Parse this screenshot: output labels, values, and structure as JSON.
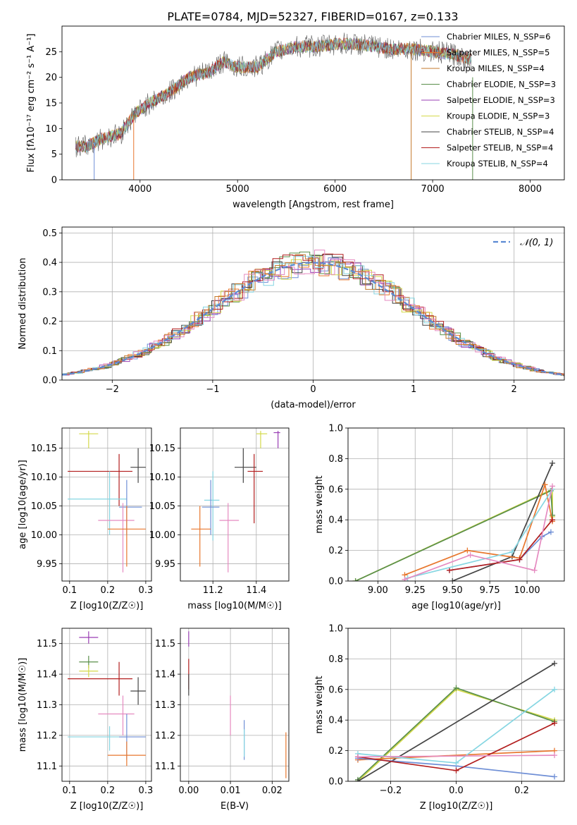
{
  "figure": {
    "title": "PLATE=0784, MJD=52327, FIBERID=0167, z=0.133"
  },
  "chart_data": [
    {
      "id": "spectrum",
      "type": "line",
      "title": "PLATE=0784, MJD=52327, FIBERID=0167, z=0.133",
      "xlabel": "wavelength [Angstrom, rest frame]",
      "ylabel": "Flux [fλ10⁻¹⁷ erg cm⁻² s⁻¹ A⁻¹]",
      "xlim": [
        3200,
        8350
      ],
      "ylim": [
        0,
        30
      ],
      "xticks": [
        4000,
        5000,
        6000,
        7000,
        8000
      ],
      "yticks": [
        0,
        5,
        10,
        15,
        20,
        25
      ],
      "grid": false,
      "legend_position": "right",
      "continuum": {
        "x": [
          3340,
          3450,
          3600,
          3800,
          3950,
          4100,
          4300,
          4500,
          4700,
          4850,
          5000,
          5200,
          5400,
          5600,
          5800,
          6000,
          6200,
          6400,
          6600,
          6800,
          7000,
          7200,
          7400
        ],
        "y": [
          6.5,
          6.5,
          8,
          9,
          13,
          15,
          17,
          20,
          21,
          23,
          22,
          22,
          25,
          26,
          26,
          26.5,
          26.5,
          26,
          25.5,
          25.5,
          25,
          24.5,
          23.5
        ]
      },
      "spikes": [
        {
          "x": 3530,
          "y": 0
        },
        {
          "x": 3935,
          "y": 0
        },
        {
          "x": 6780,
          "y": 0
        },
        {
          "x": 7410,
          "y": 0
        }
      ],
      "series": [
        {
          "name": "Chabrier MILES, N_SSP=6",
          "color": "#6f8fd6"
        },
        {
          "name": "Salpeter MILES, N_SSP=5",
          "color": "#e8772e"
        },
        {
          "name": "Kroupa MILES, N_SSP=4",
          "color": "#c47a2c"
        },
        {
          "name": "Chabrier ELODIE, N_SSP=3",
          "color": "#5a8f4a"
        },
        {
          "name": "Salpeter ELODIE, N_SSP=3",
          "color": "#9a3fb4"
        },
        {
          "name": "Kroupa ELODIE, N_SSP=3",
          "color": "#d4d94a"
        },
        {
          "name": "Chabrier STELIB, N_SSP=4",
          "color": "#444444"
        },
        {
          "name": "Salpeter STELIB, N_SSP=4",
          "color": "#b21e1e"
        },
        {
          "name": "Kroupa STELIB, N_SSP=4",
          "color": "#86d6e2"
        }
      ]
    },
    {
      "id": "residuals",
      "type": "line",
      "xlabel": "(data-model)/error",
      "ylabel": "Normed distribution",
      "xlim": [
        -2.5,
        2.5
      ],
      "ylim": [
        0,
        0.52
      ],
      "xticks": [
        -2,
        -1,
        0,
        1,
        2
      ],
      "yticks": [
        0.0,
        0.1,
        0.2,
        0.3,
        0.4,
        0.5
      ],
      "grid": true,
      "legend_position": "top-right",
      "legend": "𝒩(0, 1)",
      "normal_color": "#5b8ad3",
      "histogram_colors": [
        "#6f8fd6",
        "#e8772e",
        "#5a8f4a",
        "#9a3fb4",
        "#d4d94a",
        "#444444",
        "#b21e1e",
        "#86d6e2",
        "#e58ac0",
        "#c47a2c"
      ]
    },
    {
      "id": "age-vs-Z",
      "type": "scatter",
      "xlabel": "Z [log10(Z/Z☉)]",
      "ylabel": "age  [log10(age/yr)]",
      "xlim": [
        0.08,
        0.315
      ],
      "ylim": [
        9.92,
        10.185
      ],
      "xticks": [
        0.1,
        0.2,
        0.3
      ],
      "yticks": [
        9.95,
        10.0,
        10.05,
        10.1,
        10.15
      ],
      "grid": true,
      "errorbars": [
        {
          "x": 0.15,
          "y": 10.175,
          "xerr": [
            0.125,
            0.175
          ],
          "yerr": [
            10.15,
            10.18
          ],
          "color": "#d4d94a"
        },
        {
          "x": 0.28,
          "y": 10.117,
          "xerr": [
            0.26,
            0.3
          ],
          "yerr": [
            10.09,
            10.15
          ],
          "color": "#444444"
        },
        {
          "x": 0.23,
          "y": 10.11,
          "xerr": [
            0.095,
            0.265
          ],
          "yerr": [
            10.05,
            10.14
          ],
          "color": "#b21e1e"
        },
        {
          "x": 0.205,
          "y": 10.062,
          "xerr": [
            0.095,
            0.25
          ],
          "yerr": [
            10.0,
            10.11
          ],
          "color": "#86d6e2"
        },
        {
          "x": 0.25,
          "y": 10.048,
          "xerr": [
            0.23,
            0.29
          ],
          "yerr": [
            10.0,
            10.095
          ],
          "color": "#6f8fd6"
        },
        {
          "x": 0.24,
          "y": 10.025,
          "xerr": [
            0.175,
            0.27
          ],
          "yerr": [
            9.935,
            10.055
          ],
          "color": "#e58ac0"
        },
        {
          "x": 0.25,
          "y": 10.01,
          "xerr": [
            0.2,
            0.3
          ],
          "yerr": [
            9.945,
            10.05
          ],
          "color": "#e8772e"
        }
      ]
    },
    {
      "id": "age-vs-mass",
      "type": "scatter",
      "xlabel": "mass [log10(M/M☉)]",
      "ylabel": "",
      "xlim": [
        11.05,
        11.55
      ],
      "ylim": [
        9.92,
        10.185
      ],
      "xticks": [
        11.2,
        11.4
      ],
      "yticks": [
        9.95,
        10.0,
        10.05,
        10.1,
        10.15
      ],
      "grid": true,
      "errorbars": [
        {
          "x": 11.42,
          "y": 10.175,
          "xerr": [
            11.4,
            11.45
          ],
          "yerr": [
            10.15,
            10.18
          ],
          "color": "#d4d94a"
        },
        {
          "x": 11.5,
          "y": 10.177,
          "xerr": [
            11.48,
            11.51
          ],
          "yerr": [
            10.15,
            10.18
          ],
          "color": "#9a3fb4"
        },
        {
          "x": 11.34,
          "y": 10.117,
          "xerr": [
            11.3,
            11.4
          ],
          "yerr": [
            10.09,
            10.15
          ],
          "color": "#444444"
        },
        {
          "x": 11.39,
          "y": 10.11,
          "xerr": [
            11.36,
            11.43
          ],
          "yerr": [
            10.02,
            10.14
          ],
          "color": "#b21e1e"
        },
        {
          "x": 11.2,
          "y": 10.06,
          "xerr": [
            11.16,
            11.23
          ],
          "yerr": [
            9.99,
            10.11
          ],
          "color": "#86d6e2"
        },
        {
          "x": 11.19,
          "y": 10.048,
          "xerr": [
            11.15,
            11.23
          ],
          "yerr": [
            10.0,
            10.095
          ],
          "color": "#6f8fd6"
        },
        {
          "x": 11.27,
          "y": 10.025,
          "xerr": [
            11.23,
            11.32
          ],
          "yerr": [
            9.935,
            10.055
          ],
          "color": "#e58ac0"
        },
        {
          "x": 11.14,
          "y": 10.01,
          "xerr": [
            11.1,
            11.19
          ],
          "yerr": [
            9.945,
            10.05
          ],
          "color": "#e8772e"
        }
      ]
    },
    {
      "id": "massweight-vs-age",
      "type": "line",
      "xlabel": "age  [log10(age/yr)]",
      "ylabel": "mass weight",
      "xlim": [
        8.8,
        10.25
      ],
      "ylim": [
        0,
        1.0
      ],
      "xticks": [
        9.0,
        9.25,
        9.5,
        9.75,
        10.0
      ],
      "yticks": [
        0.0,
        0.2,
        0.4,
        0.6,
        0.8,
        1.0
      ],
      "grid": true,
      "series": [
        {
          "color": "#d4d94a",
          "x": [
            8.85,
            10.17,
            10.17
          ],
          "y": [
            0.0,
            0.6,
            0.42
          ]
        },
        {
          "color": "#5a8f4a",
          "x": [
            8.85,
            10.16,
            10.17
          ],
          "y": [
            0.0,
            0.59,
            0.43
          ]
        },
        {
          "color": "#444444",
          "x": [
            9.5,
            9.9,
            10.17
          ],
          "y": [
            0.0,
            0.16,
            0.77
          ]
        },
        {
          "color": "#e8772e",
          "x": [
            9.18,
            9.6,
            9.95,
            10.12,
            10.17
          ],
          "y": [
            0.04,
            0.2,
            0.15,
            0.63,
            0.39
          ]
        },
        {
          "color": "#6f8fd6",
          "x": [
            9.48,
            9.95,
            10.1,
            10.16
          ],
          "y": [
            0.07,
            0.14,
            0.29,
            0.32
          ]
        },
        {
          "color": "#b21e1e",
          "x": [
            9.48,
            9.95,
            10.17
          ],
          "y": [
            0.07,
            0.14,
            0.4
          ]
        },
        {
          "color": "#86d6e2",
          "x": [
            9.2,
            9.9,
            10.17
          ],
          "y": [
            0.02,
            0.19,
            0.6
          ]
        },
        {
          "color": "#e58ac0",
          "x": [
            9.18,
            9.62,
            10.05,
            10.17
          ],
          "y": [
            0.01,
            0.17,
            0.07,
            0.62
          ]
        }
      ]
    },
    {
      "id": "mass-vs-Z",
      "type": "scatter",
      "xlabel": "Z [log10(Z/Z☉)]",
      "ylabel": "mass [log10(M/M☉)]",
      "xlim": [
        0.08,
        0.315
      ],
      "ylim": [
        11.05,
        11.55
      ],
      "xticks": [
        0.1,
        0.2,
        0.3
      ],
      "yticks": [
        11.1,
        11.2,
        11.3,
        11.4,
        11.5
      ],
      "grid": true,
      "errorbars": [
        {
          "x": 0.15,
          "y": 11.52,
          "xerr": [
            0.125,
            0.175
          ],
          "yerr": [
            11.5,
            11.54
          ],
          "color": "#9a3fb4"
        },
        {
          "x": 0.15,
          "y": 11.44,
          "xerr": [
            0.125,
            0.175
          ],
          "yerr": [
            11.42,
            11.46
          ],
          "color": "#5a8f4a"
        },
        {
          "x": 0.15,
          "y": 11.41,
          "xerr": [
            0.125,
            0.175
          ],
          "yerr": [
            11.39,
            11.43
          ],
          "color": "#d4d94a"
        },
        {
          "x": 0.23,
          "y": 11.385,
          "xerr": [
            0.095,
            0.265
          ],
          "yerr": [
            11.33,
            11.44
          ],
          "color": "#b21e1e"
        },
        {
          "x": 0.28,
          "y": 11.345,
          "xerr": [
            0.26,
            0.3
          ],
          "yerr": [
            11.3,
            11.39
          ],
          "color": "#444444"
        },
        {
          "x": 0.24,
          "y": 11.27,
          "xerr": [
            0.175,
            0.27
          ],
          "yerr": [
            11.2,
            11.33
          ],
          "color": "#e58ac0"
        },
        {
          "x": 0.205,
          "y": 11.195,
          "xerr": [
            0.095,
            0.25
          ],
          "yerr": [
            11.15,
            11.23
          ],
          "color": "#86d6e2"
        },
        {
          "x": 0.25,
          "y": 11.195,
          "xerr": [
            0.23,
            0.3
          ],
          "yerr": [
            11.12,
            11.27
          ],
          "color": "#6f8fd6"
        },
        {
          "x": 0.25,
          "y": 11.135,
          "xerr": [
            0.2,
            0.3
          ],
          "yerr": [
            11.1,
            11.18
          ],
          "color": "#e8772e"
        }
      ]
    },
    {
      "id": "mass-vs-EBV",
      "type": "scatter",
      "xlabel": "E(B-V)",
      "ylabel": "",
      "xlim": [
        -0.002,
        0.024
      ],
      "ylim": [
        11.05,
        11.55
      ],
      "xticks": [
        0.0,
        0.01,
        0.02
      ],
      "yticks": [
        11.1,
        11.2,
        11.3,
        11.4,
        11.5
      ],
      "grid": true,
      "errorbars": [
        {
          "x": 0.0,
          "y": 11.52,
          "xerr": [
            0.0,
            0.0
          ],
          "yerr": [
            11.49,
            11.54
          ],
          "color": "#9a3fb4"
        },
        {
          "x": 0.0,
          "y": 11.4,
          "xerr": [
            0.0,
            0.0
          ],
          "yerr": [
            11.35,
            11.45
          ],
          "color": "#b21e1e"
        },
        {
          "x": 0.0,
          "y": 11.37,
          "xerr": [
            0.0,
            0.0
          ],
          "yerr": [
            11.33,
            11.4
          ],
          "color": "#444444"
        },
        {
          "x": 0.01,
          "y": 11.28,
          "xerr": [
            0.01,
            0.01
          ],
          "yerr": [
            11.2,
            11.33
          ],
          "color": "#e58ac0"
        },
        {
          "x": 0.0133,
          "y": 11.19,
          "xerr": [
            0.0133,
            0.0133
          ],
          "yerr": [
            11.12,
            11.25
          ],
          "color": "#6f8fd6"
        },
        {
          "x": 0.0133,
          "y": 11.17,
          "xerr": [
            0.0133,
            0.0133
          ],
          "yerr": [
            11.13,
            11.22
          ],
          "color": "#86d6e2"
        },
        {
          "x": 0.0233,
          "y": 11.14,
          "xerr": [
            0.0233,
            0.0233
          ],
          "yerr": [
            11.06,
            11.21
          ],
          "color": "#e8772e"
        }
      ]
    },
    {
      "id": "massweight-vs-Z",
      "type": "line",
      "xlabel": "Z [log10(Z/Z☉)]",
      "ylabel": "mass weight",
      "xlim": [
        -0.33,
        0.33
      ],
      "ylim": [
        0,
        1.0
      ],
      "xticks": [
        -0.2,
        0.0,
        0.2
      ],
      "yticks": [
        0.0,
        0.2,
        0.4,
        0.6,
        0.8,
        1.0
      ],
      "grid": true,
      "series": [
        {
          "color": "#d4d94a",
          "x": [
            -0.3,
            0.0,
            0.3
          ],
          "y": [
            0.0,
            0.6,
            0.4
          ]
        },
        {
          "color": "#5a8f4a",
          "x": [
            -0.3,
            0.0,
            0.3
          ],
          "y": [
            0.01,
            0.61,
            0.39
          ]
        },
        {
          "color": "#444444",
          "x": [
            -0.3,
            0.3
          ],
          "y": [
            0.0,
            0.77
          ]
        },
        {
          "color": "#e8772e",
          "x": [
            -0.3,
            0.3
          ],
          "y": [
            0.14,
            0.2
          ]
        },
        {
          "color": "#6f8fd6",
          "x": [
            -0.3,
            0.0,
            0.3
          ],
          "y": [
            0.15,
            0.1,
            0.03
          ]
        },
        {
          "color": "#b21e1e",
          "x": [
            -0.3,
            0.0,
            0.3
          ],
          "y": [
            0.16,
            0.07,
            0.38
          ]
        },
        {
          "color": "#86d6e2",
          "x": [
            -0.3,
            0.0,
            0.3
          ],
          "y": [
            0.18,
            0.12,
            0.6
          ]
        },
        {
          "color": "#e58ac0",
          "x": [
            -0.3,
            0.3
          ],
          "y": [
            0.16,
            0.17
          ]
        }
      ]
    }
  ]
}
